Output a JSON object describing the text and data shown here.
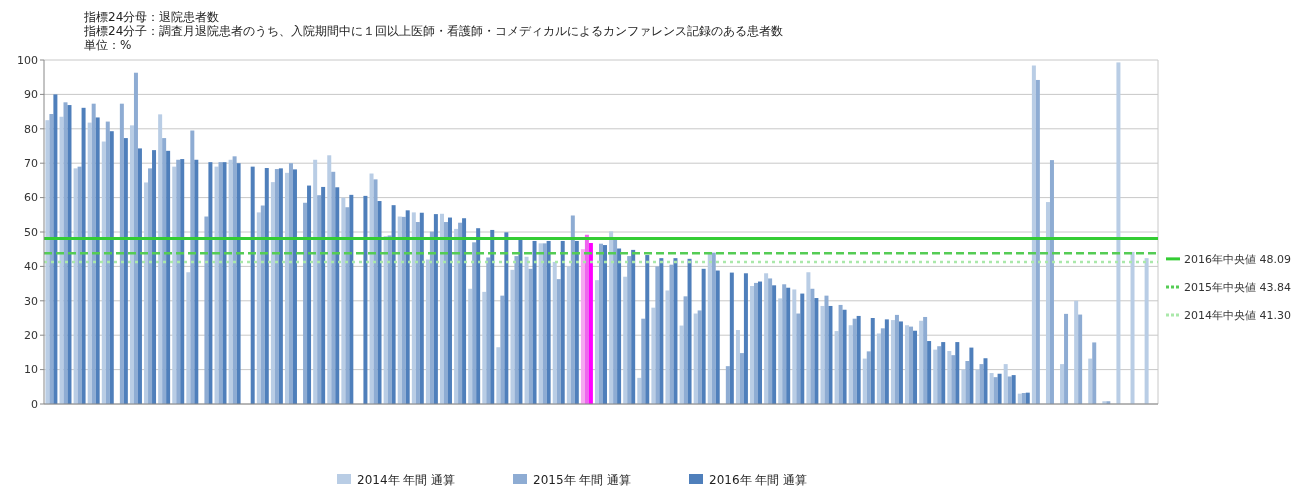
{
  "chart_data": {
    "type": "bar",
    "ylabel": "単位：%",
    "annotations": [
      "指標24分母：退院患者数",
      "指標24分子：調査月退院患者のうち、入院期間中に１回以上医師・看護師・コメディカルによるカンファレンス記録のある患者数"
    ],
    "categories": [
      null,
      null,
      null,
      null,
      null,
      null,
      null,
      null,
      null,
      null,
      null,
      null,
      null,
      null,
      null,
      null,
      null,
      null,
      null,
      null,
      null,
      null,
      null,
      null,
      null,
      null,
      null,
      null,
      null,
      null,
      null,
      null,
      null,
      null,
      null,
      null,
      null,
      null,
      null,
      null,
      null,
      null,
      null,
      null,
      null,
      null,
      null,
      null,
      null,
      null,
      null,
      null,
      null,
      null,
      null,
      null,
      null,
      null,
      null,
      null,
      null,
      null,
      null,
      null,
      null,
      null,
      null,
      null,
      null,
      null,
      null,
      null,
      null,
      null,
      null,
      null,
      null,
      null,
      null
    ],
    "ylim": [
      0,
      100
    ],
    "yticks": [
      0,
      10,
      20,
      30,
      40,
      50,
      60,
      70,
      80,
      90,
      100
    ],
    "grid": "y",
    "legend": "bottom",
    "series": [
      {
        "name": "2014年 年間 通算",
        "color": "#b9cde5",
        "values": [
          82.5,
          83.5,
          68.5,
          81.8,
          76.3,
          null,
          81,
          64.4,
          84.2,
          69,
          38.3,
          null,
          69,
          71,
          null,
          55.7,
          64.5,
          67.2,
          null,
          71,
          72.3,
          60,
          null,
          67,
          48.8,
          54.5,
          55.7,
          42,
          55.3,
          50.9,
          33.5,
          32.6,
          16.5,
          39,
          42.8,
          46.7,
          41.3,
          40,
          45,
          36,
          50.2,
          37,
          7.6,
          28,
          33,
          22.8,
          26.3,
          44.2,
          null,
          21.5,
          34.3,
          38,
          30.7,
          33.3,
          38.3,
          28.5,
          21.2,
          22.9,
          13.2,
          20.5,
          24.4,
          22.9,
          24.2,
          15.8,
          15.4,
          10,
          10,
          9,
          11.6,
          3,
          98.4,
          58.7,
          11.6,
          30,
          13.2,
          0.8,
          99.3,
          44.2,
          42.4
        ],
        "colors": [
          "#b9cde5",
          "#b9cde5",
          "#b9cde5",
          "#b9cde5",
          "#b9cde5",
          null,
          "#b9cde5",
          "#b9cde5",
          "#b9cde5",
          "#b9cde5",
          "#b9cde5",
          null,
          "#b9cde5",
          "#b9cde5",
          null,
          "#b9cde5",
          "#b9cde5",
          "#b9cde5",
          null,
          "#b9cde5",
          "#b9cde5",
          "#b9cde5",
          null,
          "#b9cde5",
          "#b9cde5",
          "#b9cde5",
          "#b9cde5",
          "#b9cde5",
          "#b9cde5",
          "#b9cde5",
          "#b9cde5",
          "#b9cde5",
          "#b9cde5",
          "#b9cde5",
          "#b9cde5",
          "#b9cde5",
          "#b9cde5",
          "#b9cde5",
          "#f5a8f0",
          "#b9cde5",
          "#b9cde5",
          "#b9cde5",
          "#b9cde5",
          "#b9cde5",
          "#b9cde5",
          "#b9cde5",
          "#b9cde5",
          "#b9cde5",
          null,
          "#b9cde5",
          "#b9cde5",
          "#b9cde5",
          "#b9cde5",
          "#b9cde5",
          "#b9cde5",
          "#b9cde5",
          "#b9cde5",
          "#b9cde5",
          "#b9cde5",
          "#b9cde5",
          "#b9cde5",
          "#b9cde5",
          "#b9cde5",
          "#b9cde5",
          "#b9cde5",
          "#b9cde5",
          "#b9cde5",
          "#b9cde5",
          "#b9cde5",
          "#b9cde5",
          "#b9cde5",
          "#b9cde5",
          "#b9cde5",
          "#b9cde5",
          "#b9cde5",
          "#b9cde5",
          "#b9cde5",
          "#b9cde5",
          "#b9cde5"
        ]
      },
      {
        "name": "2015年 年間 通算",
        "color": "#8eacd3",
        "values": [
          84.3,
          87.7,
          69,
          87.3,
          82.1,
          87.3,
          96.3,
          68.5,
          77.3,
          71,
          79.5,
          54.5,
          70.3,
          72,
          null,
          57.7,
          68.3,
          70,
          58.5,
          60.7,
          67.5,
          57.2,
          null,
          65.3,
          49,
          54.4,
          52.9,
          50.1,
          52.9,
          52.7,
          47,
          42.6,
          31.5,
          43,
          39.3,
          46.7,
          36.3,
          54.8,
          49.2,
          46.6,
          48,
          43,
          24.8,
          40,
          40.5,
          31.3,
          27.2,
          44,
          11,
          14.8,
          35.2,
          36.5,
          34.8,
          26.3,
          33.5,
          31.5,
          28.8,
          24.8,
          15.3,
          22,
          25.9,
          22.5,
          25.3,
          16.8,
          14.2,
          12.5,
          11.6,
          7.8,
          8,
          3.2,
          94.2,
          70.9,
          26.2,
          26,
          17.9,
          0.8,
          null,
          null,
          null
        ],
        "colors": [
          "#8eacd3",
          "#8eacd3",
          "#8eacd3",
          "#8eacd3",
          "#8eacd3",
          "#8eacd3",
          "#8eacd3",
          "#8eacd3",
          "#8eacd3",
          "#8eacd3",
          "#8eacd3",
          "#8eacd3",
          "#8eacd3",
          "#8eacd3",
          null,
          "#8eacd3",
          "#8eacd3",
          "#8eacd3",
          "#8eacd3",
          "#8eacd3",
          "#8eacd3",
          "#8eacd3",
          null,
          "#8eacd3",
          "#8eacd3",
          "#8eacd3",
          "#8eacd3",
          "#8eacd3",
          "#8eacd3",
          "#8eacd3",
          "#8eacd3",
          "#8eacd3",
          "#8eacd3",
          "#8eacd3",
          "#8eacd3",
          "#8eacd3",
          "#8eacd3",
          "#8eacd3",
          "#ee66ee",
          "#8eacd3",
          "#8eacd3",
          "#8eacd3",
          "#8eacd3",
          "#8eacd3",
          "#8eacd3",
          "#8eacd3",
          "#8eacd3",
          "#8eacd3",
          "#8eacd3",
          "#8eacd3",
          "#8eacd3",
          "#8eacd3",
          "#8eacd3",
          "#8eacd3",
          "#8eacd3",
          "#8eacd3",
          "#8eacd3",
          "#8eacd3",
          "#8eacd3",
          "#8eacd3",
          "#8eacd3",
          "#8eacd3",
          "#8eacd3",
          "#8eacd3",
          "#8eacd3",
          "#8eacd3",
          "#8eacd3",
          "#8eacd3",
          "#8eacd3",
          "#8eacd3",
          "#8eacd3",
          "#8eacd3",
          "#8eacd3",
          "#8eacd3",
          "#8eacd3",
          "#8eacd3",
          null,
          null,
          null
        ]
      },
      {
        "name": "2016年 年間 通算",
        "color": "#4f7fbb",
        "values": [
          90,
          86.9,
          86.1,
          83.3,
          79.3,
          77.3,
          74.3,
          73.8,
          73.6,
          71.2,
          71,
          70.3,
          70.3,
          70,
          69,
          68.6,
          68.5,
          68.2,
          63.5,
          63.1,
          63,
          60.8,
          60.5,
          59,
          57.8,
          56.3,
          55.6,
          55.2,
          54.2,
          54,
          51.1,
          50.6,
          49.9,
          48.2,
          47.4,
          47.4,
          47.4,
          47.4,
          46.8,
          46.2,
          45.2,
          44.8,
          43.3,
          42.4,
          42.4,
          42.2,
          39.3,
          38.8,
          38.2,
          38,
          35.6,
          34.5,
          33.8,
          32.1,
          30.8,
          28.5,
          27.4,
          25.6,
          25,
          24.6,
          24,
          21.3,
          18.3,
          18,
          18,
          16.4,
          13.3,
          8.8,
          8.4,
          3.3,
          null,
          null,
          null,
          null,
          null,
          null,
          null,
          null,
          null
        ],
        "colors": [
          "#4f7fbb",
          "#4f7fbb",
          "#4f7fbb",
          "#4f7fbb",
          "#4f7fbb",
          "#4f7fbb",
          "#4f7fbb",
          "#4f7fbb",
          "#4f7fbb",
          "#4f7fbb",
          "#4f7fbb",
          "#4f7fbb",
          "#4f7fbb",
          "#4f7fbb",
          "#4f7fbb",
          "#4f7fbb",
          "#4f7fbb",
          "#4f7fbb",
          "#4f7fbb",
          "#4f7fbb",
          "#4f7fbb",
          "#4f7fbb",
          "#4f7fbb",
          "#4f7fbb",
          "#4f7fbb",
          "#4f7fbb",
          "#4f7fbb",
          "#4f7fbb",
          "#4f7fbb",
          "#4f7fbb",
          "#4f7fbb",
          "#4f7fbb",
          "#4f7fbb",
          "#4f7fbb",
          "#4f7fbb",
          "#4f7fbb",
          "#4f7fbb",
          "#4f7fbb",
          "#ff00ff",
          "#4f7fbb",
          "#4f7fbb",
          "#4f7fbb",
          "#4f7fbb",
          "#4f7fbb",
          "#4f7fbb",
          "#4f7fbb",
          "#4f7fbb",
          "#4f7fbb",
          "#4f7fbb",
          "#4f7fbb",
          "#4f7fbb",
          "#4f7fbb",
          "#4f7fbb",
          "#4f7fbb",
          "#4f7fbb",
          "#4f7fbb",
          "#4f7fbb",
          "#4f7fbb",
          "#4f7fbb",
          "#4f7fbb",
          "#4f7fbb",
          "#4f7fbb",
          "#4f7fbb",
          "#4f7fbb",
          "#4f7fbb",
          "#4f7fbb",
          "#4f7fbb",
          "#4f7fbb",
          "#4f7fbb",
          "#4f7fbb",
          null,
          null,
          null,
          null,
          null,
          null,
          null,
          null,
          null
        ]
      }
    ],
    "ref_lines": [
      {
        "axis": "y",
        "value": 48.09,
        "label": "2016年中央値 48.09",
        "color": "#33cc33",
        "line_style": "solid"
      },
      {
        "axis": "y",
        "value": 43.84,
        "label": "2015年中央値 43.84",
        "color": "#55cc55",
        "line_style": "dashed"
      },
      {
        "axis": "y",
        "value": 41.3,
        "label": "2014年中央値 41.30",
        "color": "#aae8aa",
        "line_style": "dotted"
      }
    ]
  }
}
